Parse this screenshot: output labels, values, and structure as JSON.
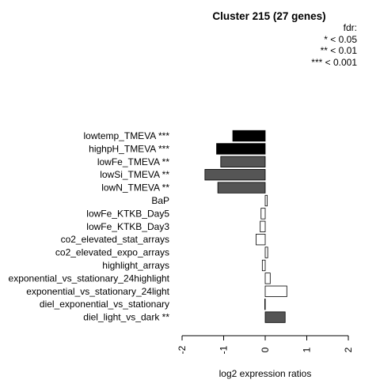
{
  "chart_data": {
    "type": "bar",
    "orientation": "horizontal",
    "title": "Cluster 215 (27 genes)",
    "legend": {
      "title": "fdr:",
      "entries": [
        "* < 0.05",
        "** < 0.01",
        "*** < 0.001"
      ],
      "placement": "top-right"
    },
    "xlabel": "log2 expression ratios",
    "ylabel": "",
    "xlim": [
      -2,
      2
    ],
    "xticks": [
      -2,
      -1,
      0,
      1,
      2
    ],
    "xtick_labels": [
      "-2",
      "-1",
      "0",
      "1",
      "2"
    ],
    "grid": false,
    "categories": [
      "lowtemp_TMEVA ***",
      "highpH_TMEVA ***",
      "lowFe_TMEVA **",
      "lowSi_TMEVA **",
      "lowN_TMEVA **",
      "BaP",
      "lowFe_KTKB_Day5",
      "lowFe_KTKB_Day3",
      "co2_elevated_stat_arrays",
      "co2_elevated_expo_arrays",
      "highlight_arrays",
      "exponential_vs_stationary_24highlight",
      "exponential_vs_stationary_24light",
      "diel_exponential_vs_stationary",
      "diel_light_vs_dark **"
    ],
    "values": [
      -0.78,
      -1.17,
      -1.07,
      -1.45,
      -1.14,
      0.05,
      -0.1,
      -0.12,
      -0.22,
      0.06,
      -0.07,
      0.12,
      0.52,
      -0.01,
      0.48
    ],
    "colors": [
      "#000000",
      "#000000",
      "#555555",
      "#555555",
      "#555555",
      "#ffffff",
      "#ffffff",
      "#ffffff",
      "#ffffff",
      "#ffffff",
      "#ffffff",
      "#ffffff",
      "#ffffff",
      "#ffffff",
      "#555555"
    ]
  }
}
